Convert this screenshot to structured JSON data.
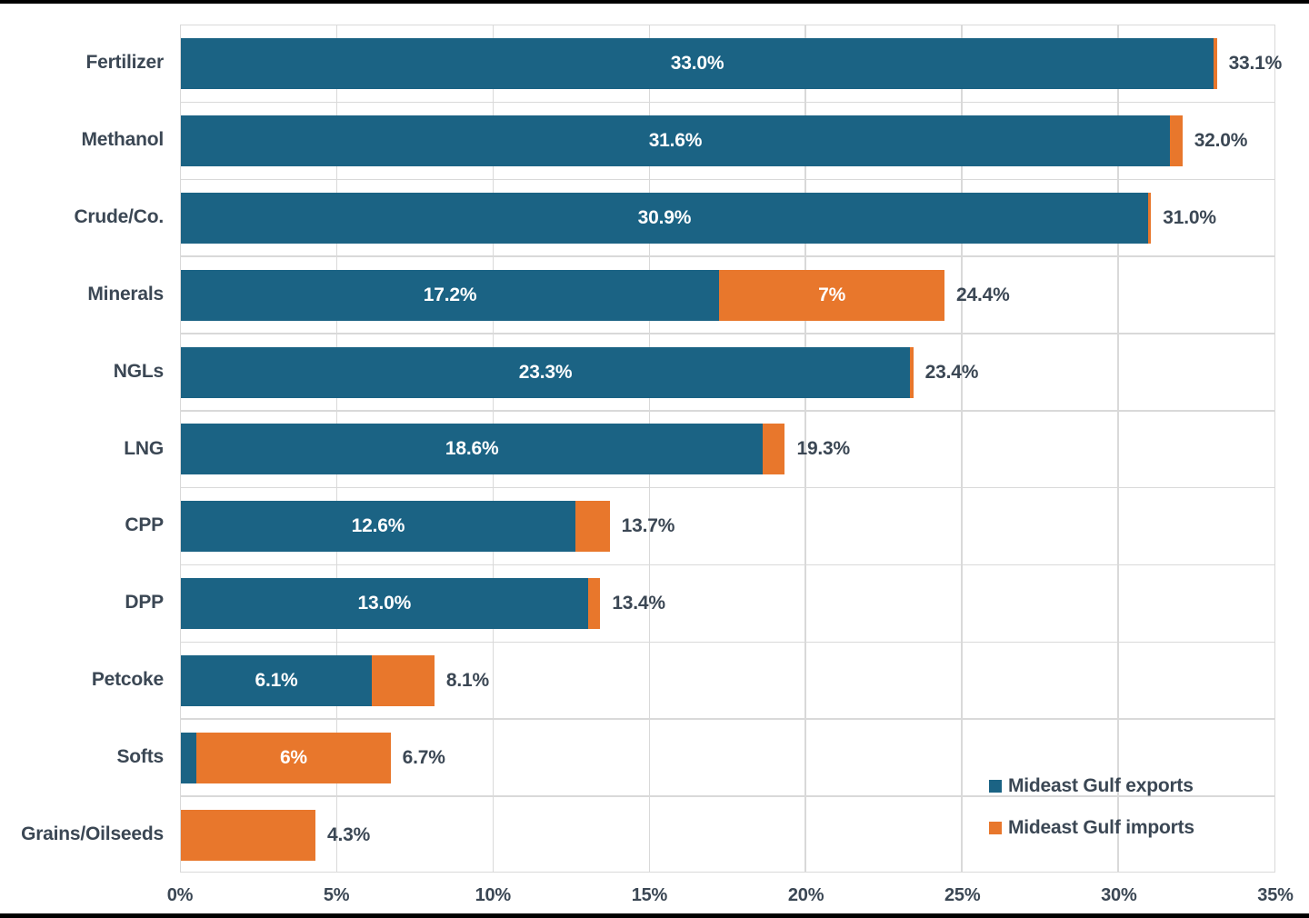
{
  "colors": {
    "exports": "#1b6384",
    "imports": "#e8772c",
    "text_dark": "#3b4754",
    "bar_label": "#ffffff",
    "gridline": "#d9d9d9",
    "frame": "#000000"
  },
  "chart_data": {
    "type": "bar",
    "orientation": "horizontal",
    "stacked": true,
    "title": "",
    "categories": [
      "Fertilizer",
      "Methanol",
      "Crude/Co.",
      "Minerals",
      "NGLs",
      "LNG",
      "CPP",
      "DPP",
      "Petcoke",
      "Softs",
      "Grains/Oilseeds"
    ],
    "series": [
      {
        "name": "Mideast Gulf exports",
        "color_key": "exports",
        "values": [
          33.0,
          31.6,
          30.9,
          17.2,
          23.3,
          18.6,
          12.6,
          13.0,
          6.1,
          0.5,
          0
        ]
      },
      {
        "name": "Mideast Gulf imports",
        "color_key": "imports",
        "values": [
          0.1,
          0.4,
          0.1,
          7.2,
          0.1,
          0.7,
          1.1,
          0.4,
          2.0,
          6.2,
          4.3
        ]
      }
    ],
    "totals": [
      33.1,
      32.0,
      31.0,
      24.4,
      23.4,
      19.3,
      13.7,
      13.4,
      8.1,
      6.7,
      4.3
    ],
    "bar_labels": {
      "exports": [
        "33.0%",
        "31.6%",
        "30.9%",
        "17.2%",
        "23.3%",
        "18.6%",
        "12.6%",
        "13.0%",
        "6.1%",
        null,
        null
      ],
      "imports": [
        null,
        null,
        null,
        "7%",
        null,
        null,
        null,
        null,
        null,
        "6%",
        null
      ],
      "totals": [
        "33.1%",
        "32.0%",
        "31.0%",
        "24.4%",
        "23.4%",
        "19.3%",
        "13.7%",
        "13.4%",
        "8.1%",
        "6.7%",
        "4.3%"
      ]
    },
    "x_axis": {
      "min": 0,
      "max": 35,
      "tick_step": 5,
      "tick_labels": [
        "0%",
        "5%",
        "10%",
        "15%",
        "20%",
        "25%",
        "30%",
        "35%"
      ]
    },
    "legend": {
      "position": "bottom-right",
      "entries": [
        "Mideast Gulf exports",
        "Mideast Gulf imports"
      ]
    },
    "grid": true
  }
}
